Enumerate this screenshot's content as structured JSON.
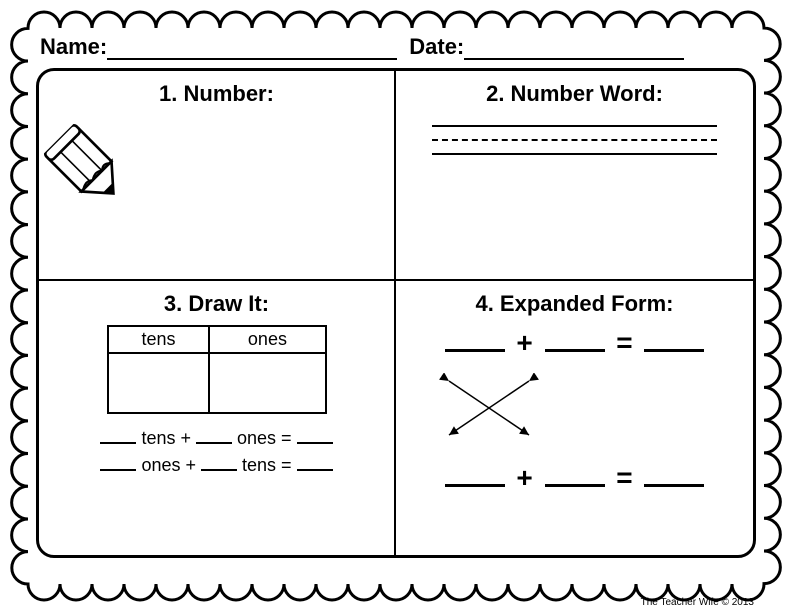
{
  "header": {
    "name_label": "Name:",
    "date_label": "Date:"
  },
  "cells": {
    "number": {
      "title": "1. Number:"
    },
    "word": {
      "title": "2. Number Word:"
    },
    "draw": {
      "title": "3. Draw It:",
      "col1": "tens",
      "col2": "ones",
      "eq1_a": "tens +",
      "eq1_b": "ones =",
      "eq2_a": "ones +",
      "eq2_b": "tens ="
    },
    "expanded": {
      "title": "4. Expanded Form:",
      "plus": "+",
      "equals": "="
    }
  },
  "credit": "The Teacher Wife © 2013",
  "style": {
    "border_color": "#000000",
    "background": "#ffffff",
    "scallop_radius": 16,
    "scallop_stroke": 3
  }
}
